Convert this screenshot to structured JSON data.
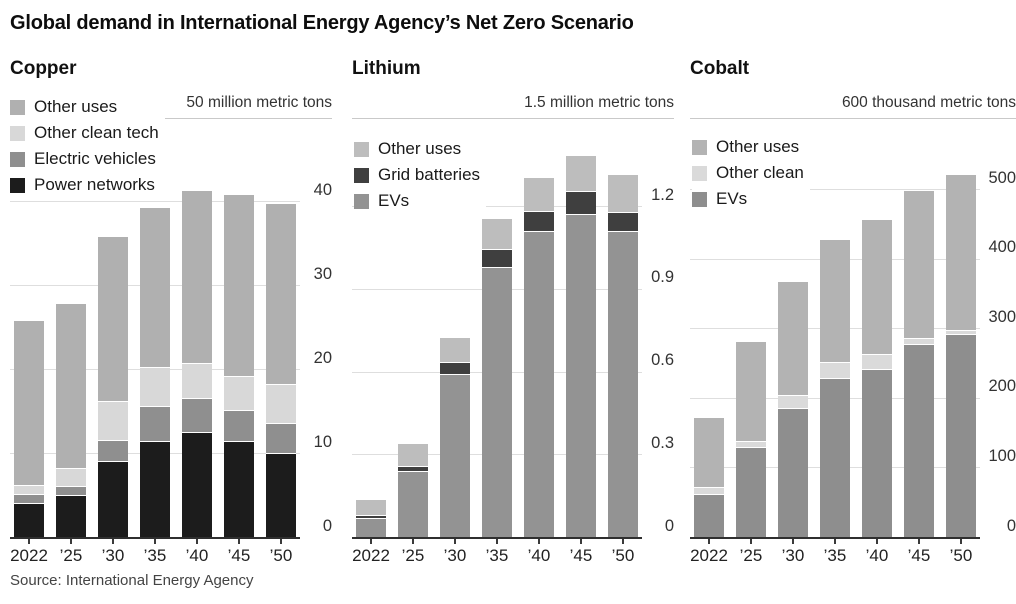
{
  "page_title": "Global demand in International Energy Agency’s Net Zero Scenario",
  "source_note": "Source: International Energy Agency",
  "colors": {
    "axis": "#2f2f2f",
    "gridline": "#dedede",
    "title_text": "#0d0d0d"
  },
  "chart_data": [
    {
      "type": "bar",
      "stacked": true,
      "title": "Copper",
      "unit_label": "50 million metric tons",
      "categories": [
        "2022",
        "’25",
        "’30",
        "’35",
        "’40",
        "’45",
        "’50"
      ],
      "ylim": [
        0,
        46
      ],
      "yticks": [
        {
          "label": "0",
          "value": 0
        },
        {
          "label": "10",
          "value": 10
        },
        {
          "label": "20",
          "value": 20
        },
        {
          "label": "30",
          "value": 30
        },
        {
          "label": "40",
          "value": 40
        }
      ],
      "grid": true,
      "legend_position": "top-left",
      "series": [
        {
          "name": "Power networks",
          "color": "#1c1c1c",
          "values": [
            4,
            5,
            9,
            11.5,
            12.5,
            11.5,
            10
          ]
        },
        {
          "name": "Electric vehicles",
          "color": "#8f8f8f",
          "values": [
            1,
            1,
            2.5,
            4,
            4,
            3.5,
            3.5
          ]
        },
        {
          "name": "Other clean tech",
          "color": "#d8d8d8",
          "values": [
            1,
            2,
            4.5,
            4.5,
            4,
            4,
            4.5
          ]
        },
        {
          "name": "Other uses",
          "color": "#b0b0b0",
          "values": [
            19.5,
            19.5,
            19.5,
            19,
            20.5,
            21.5,
            21.5
          ]
        }
      ]
    },
    {
      "type": "bar",
      "stacked": true,
      "title": "Lithium",
      "unit_label": "1.5 million metric tons",
      "categories": [
        "2022",
        "’25",
        "’30",
        "’35",
        "’40",
        "’45",
        "’50"
      ],
      "ylim": [
        0,
        1.4
      ],
      "yticks": [
        {
          "label": "0",
          "value": 0
        },
        {
          "label": "0.3",
          "value": 0.3
        },
        {
          "label": "0.6",
          "value": 0.6
        },
        {
          "label": "0.9",
          "value": 0.9
        },
        {
          "label": "1.2",
          "value": 1.2
        }
      ],
      "grid": true,
      "legend_position": "top-left",
      "series": [
        {
          "name": "EVs",
          "color": "#939393",
          "values": [
            0.07,
            0.24,
            0.59,
            0.98,
            1.11,
            1.17,
            1.11
          ]
        },
        {
          "name": "Grid batteries",
          "color": "#3f3f3f",
          "values": [
            0.005,
            0.015,
            0.04,
            0.06,
            0.07,
            0.08,
            0.065
          ]
        },
        {
          "name": "Other uses",
          "color": "#bdbdbd",
          "values": [
            0.055,
            0.08,
            0.09,
            0.11,
            0.12,
            0.13,
            0.135
          ]
        }
      ]
    },
    {
      "type": "bar",
      "stacked": true,
      "title": "Cobalt",
      "unit_label": "600 thousand metric tons",
      "categories": [
        "2022",
        "’25",
        "’30",
        "’35",
        "’40",
        "’45",
        "’50"
      ],
      "ylim": [
        0,
        555
      ],
      "yticks": [
        {
          "label": "0",
          "value": 0
        },
        {
          "label": "100",
          "value": 100
        },
        {
          "label": "200",
          "value": 200
        },
        {
          "label": "300",
          "value": 300
        },
        {
          "label": "400",
          "value": 400
        },
        {
          "label": "500",
          "value": 500
        }
      ],
      "grid": true,
      "legend_position": "top-left",
      "series": [
        {
          "name": "EVs",
          "color": "#8e8e8e",
          "values": [
            62,
            130,
            186,
            229,
            242,
            278,
            292
          ]
        },
        {
          "name": "Other clean",
          "color": "#dadada",
          "values": [
            8,
            6,
            17,
            21,
            20,
            6,
            4
          ]
        },
        {
          "name": "Other uses",
          "color": "#b3b3b3",
          "values": [
            100,
            143,
            162,
            176,
            193,
            212,
            223
          ]
        }
      ]
    }
  ]
}
